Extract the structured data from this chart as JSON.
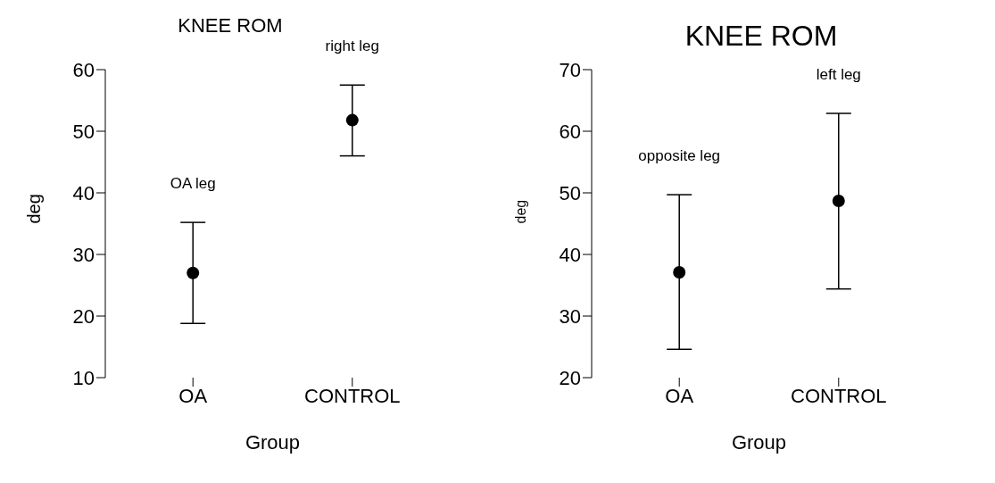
{
  "chart_data": [
    {
      "type": "scatter",
      "title": "KNEE ROM",
      "xlabel": "Group",
      "ylabel": "deg",
      "categories": [
        "OA",
        "CONTROL"
      ],
      "values": [
        27,
        51.8
      ],
      "errors": [
        [
          18.8,
          35.2
        ],
        [
          46,
          57.5
        ]
      ],
      "color": "#000000",
      "marker": "circle",
      "ylim": [
        10,
        60
      ],
      "yticks": [
        10,
        20,
        30,
        40,
        50,
        60
      ],
      "grid": false,
      "annotations": [
        "OA leg",
        "right leg"
      ]
    },
    {
      "type": "scatter",
      "title": "KNEE ROM",
      "xlabel": "Group",
      "ylabel": "deg",
      "categories": [
        "OA",
        "CONTROL"
      ],
      "values": [
        37.1,
        48.7
      ],
      "errors": [
        [
          24.6,
          49.7
        ],
        [
          34.4,
          62.9
        ]
      ],
      "color": "#000000",
      "marker": "circle",
      "ylim": [
        20,
        70
      ],
      "yticks": [
        20,
        30,
        40,
        50,
        60,
        70
      ],
      "grid": false,
      "annotations": [
        "opposite leg",
        "left leg"
      ]
    }
  ]
}
